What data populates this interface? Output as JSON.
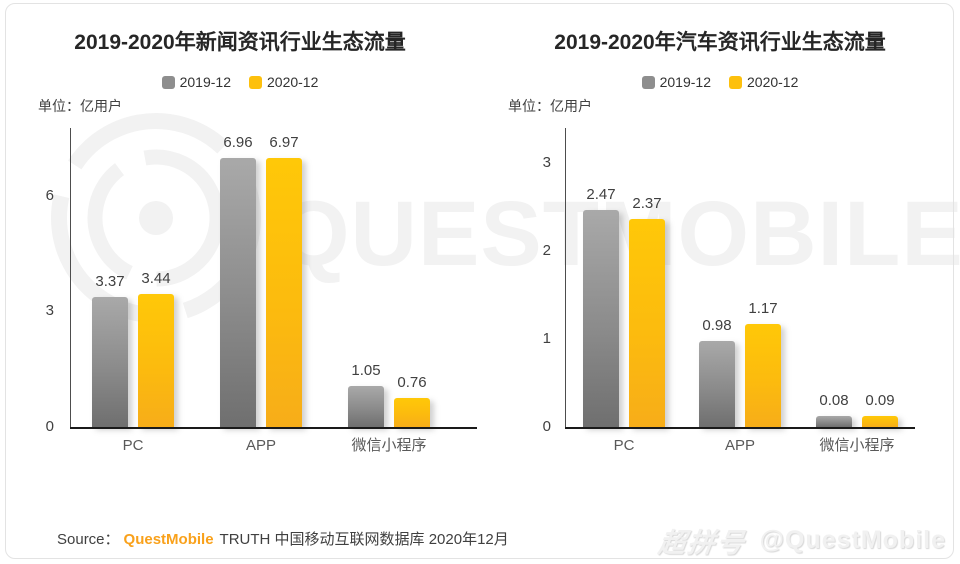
{
  "page": {
    "watermark_text": "QUESTMOBILE",
    "footer": {
      "source_prefix": "Source：",
      "source_brand": "QuestMobile",
      "source_rest": "TRUTH 中国移动互联网数据库 2020年12月",
      "brand_color": "#f9a11b"
    },
    "corner_watermark": {
      "logo_text": "超拼号",
      "handle": "@QuestMobile"
    },
    "watermark_color": "#f2f2f2"
  },
  "chart_data": [
    {
      "type": "bar",
      "title": "2019-2020年新闻资讯行业生态流量",
      "unit_label": "单位：亿用户",
      "categories": [
        "PC",
        "APP",
        "微信小程序"
      ],
      "series": [
        {
          "name": "2019-12",
          "color": "#8e8e8e",
          "values": [
            3.37,
            6.96,
            1.05
          ]
        },
        {
          "name": "2020-12",
          "color": "#fdc00d",
          "values": [
            3.44,
            6.97,
            0.76
          ]
        }
      ],
      "yticks": [
        0,
        3,
        6
      ],
      "ylim": [
        0,
        7.75
      ],
      "grid": false,
      "legend_position": "top",
      "value_labels": true
    },
    {
      "type": "bar",
      "title": "2019-2020年汽车资讯行业生态流量",
      "unit_label": "单位：亿用户",
      "categories": [
        "PC",
        "APP",
        "微信小程序"
      ],
      "series": [
        {
          "name": "2019-12",
          "color": "#8e8e8e",
          "values": [
            2.47,
            0.98,
            0.08
          ]
        },
        {
          "name": "2020-12",
          "color": "#fdc00d",
          "values": [
            2.37,
            1.17,
            0.09
          ]
        }
      ],
      "yticks": [
        0,
        1,
        2,
        3
      ],
      "ylim": [
        0,
        3.4
      ],
      "grid": false,
      "legend_position": "top",
      "value_labels": true
    }
  ]
}
